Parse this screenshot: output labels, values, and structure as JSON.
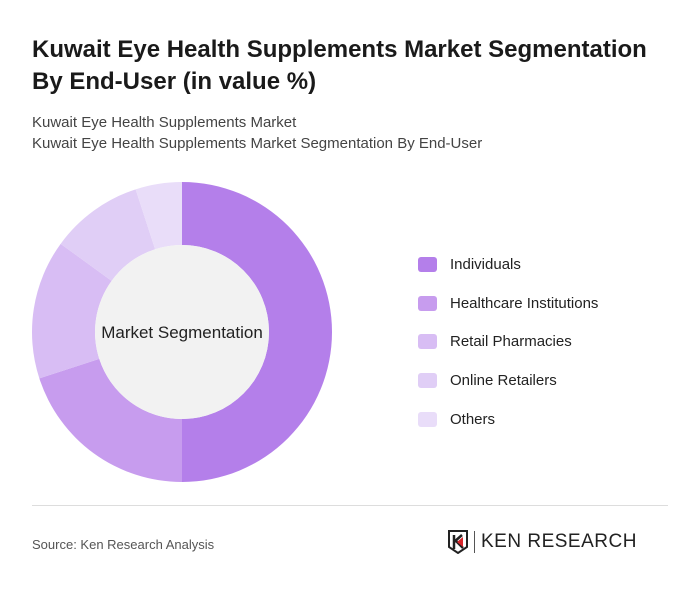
{
  "title": "Kuwait Eye Health Supplements Market Segmentation By End-User (in value %)",
  "subtitle1": "Kuwait Eye Health Supplements Market",
  "subtitle2": "Kuwait Eye Health Supplements Market Segmentation By End-User",
  "source": "Source: Ken Research Analysis",
  "logo_text": "KEN RESEARCH",
  "chart_data": {
    "type": "pie",
    "variant": "donut",
    "center_label": "Market Segmentation",
    "legend_position": "right",
    "categories": [
      "Individuals",
      "Healthcare Institutions",
      "Retail Pharmacies",
      "Online Retailers",
      "Others"
    ],
    "values": [
      50,
      20,
      15,
      10,
      5
    ],
    "colors": [
      "#b47fea",
      "#c79cee",
      "#d8bdf4",
      "#e0cef6",
      "#e9ddf9"
    ]
  }
}
